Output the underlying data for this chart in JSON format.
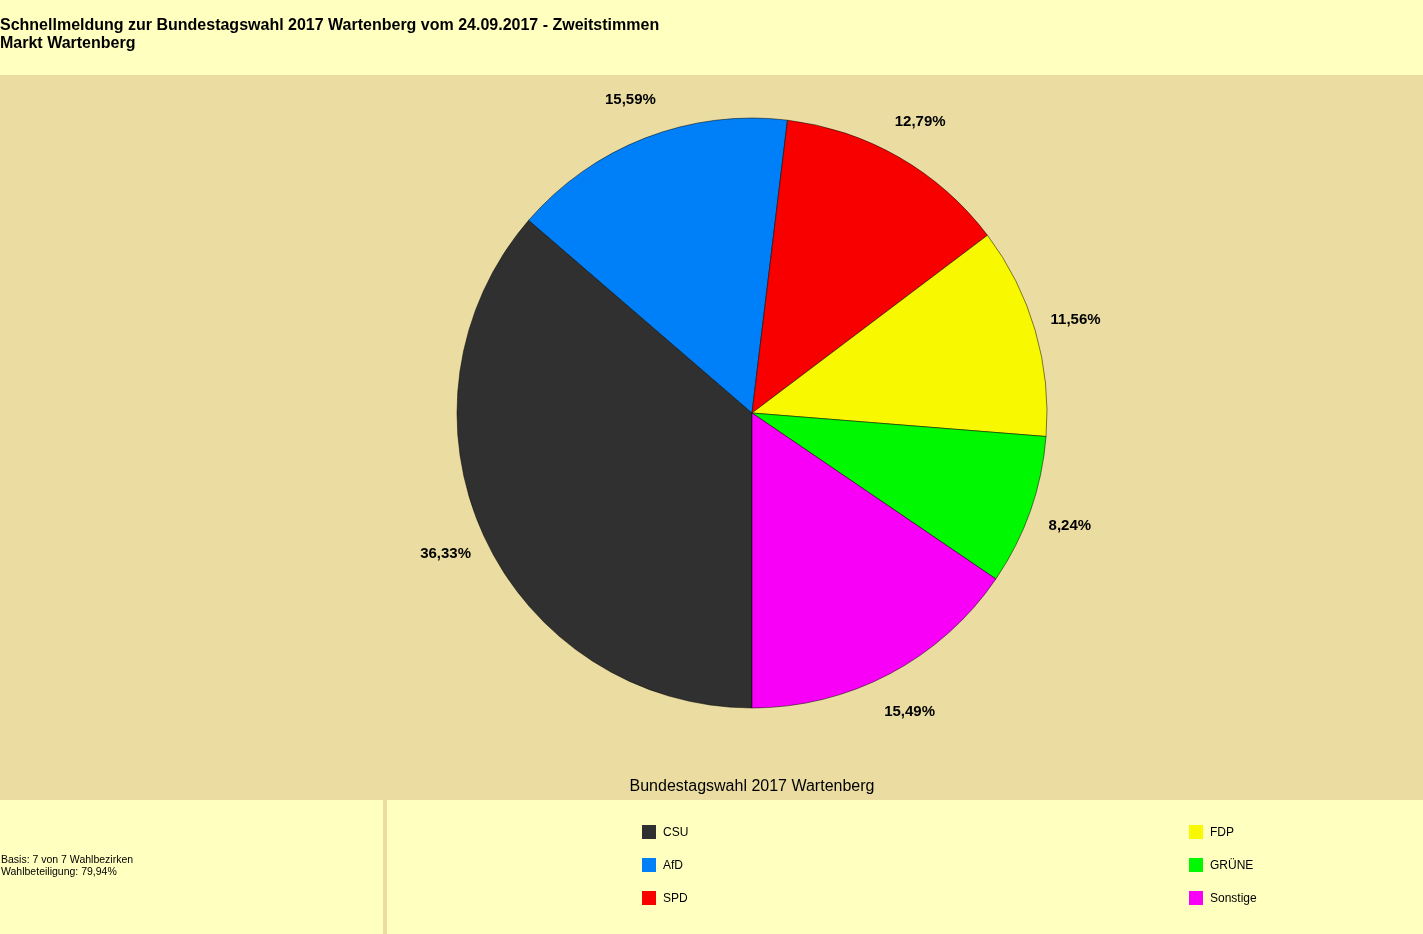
{
  "chart_data": {
    "type": "pie",
    "title": "Schnellmeldung zur Bundestagswahl 2017 Wartenberg vom 24.09.2017 - Zweitstimmen",
    "subtitle": "Markt Wartenberg",
    "categories": [
      "CSU",
      "AfD",
      "SPD",
      "FDP",
      "GRÜNE",
      "Sonstige"
    ],
    "values": [
      36.33,
      15.59,
      12.79,
      11.56,
      8.24,
      15.49
    ],
    "colors": [
      "#303030",
      "#0080f8",
      "#f80000",
      "#f8f800",
      "#00f800",
      "#f800f8"
    ],
    "value_labels": [
      "36,33%",
      "15,59%",
      "12,79%",
      "11,56%",
      "8,24%",
      "15,49%"
    ],
    "legend": "bottom",
    "annotations": [
      "Bundestagswahl 2017 Wartenberg",
      "Basis: 7 von 7 Wahlbezirken",
      "Wahlbeteiligung: 79,94%"
    ]
  }
}
